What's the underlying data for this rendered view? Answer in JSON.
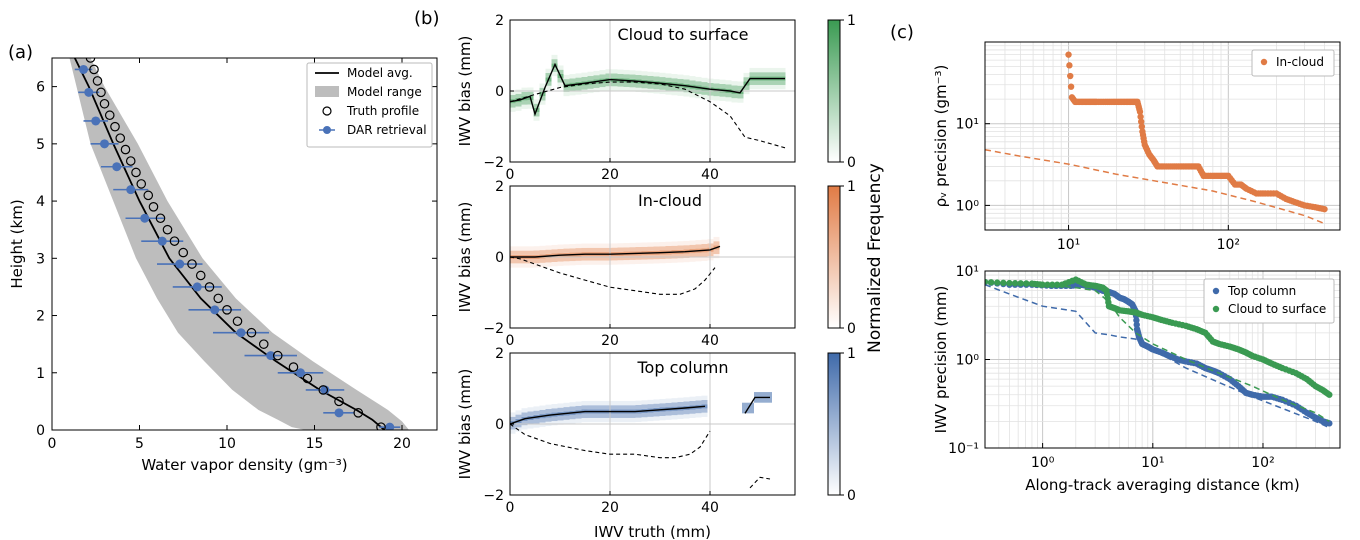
{
  "panel_labels": [
    "(a)",
    "(b)",
    "(c)"
  ],
  "colorbar_label": "Normalized Frequency",
  "colors": {
    "green": "#3a9a52",
    "orange": "#e07b45",
    "blue": "#3f6aaa",
    "model_range": "#bdbdbd",
    "retrieval": "#4a72b8"
  },
  "chart_data": [
    {
      "id": "a",
      "type": "line",
      "xlabel": "Water vapor density (gm⁻³)",
      "ylabel": "Height (km)",
      "xlim": [
        0,
        22
      ],
      "ylim": [
        0,
        6.5
      ],
      "xticks": [
        0,
        5,
        10,
        15,
        20
      ],
      "yticks": [
        0,
        1,
        2,
        3,
        4,
        5,
        6
      ],
      "legend": [
        "Model avg.",
        "Model range",
        "Truth profile",
        "DAR retrieval"
      ],
      "legend_position": "top-right",
      "model_avg": {
        "x": [
          1.3,
          2.1,
          3.5,
          5.0,
          6.7,
          8.5,
          10.5,
          12.8,
          15.3,
          17.4,
          18.3,
          19.0
        ],
        "y": [
          6.5,
          6.0,
          5.0,
          4.0,
          3.0,
          2.3,
          1.7,
          1.2,
          0.7,
          0.35,
          0.18,
          0.0
        ]
      },
      "range_min": {
        "x": [
          1.0,
          1.4,
          2.2,
          3.5,
          4.8,
          6.0,
          7.2,
          8.7,
          10.3,
          11.8,
          12.9,
          13.7,
          14.5
        ],
        "y": [
          6.5,
          6.0,
          5.0,
          4.0,
          3.0,
          2.3,
          1.7,
          1.2,
          0.7,
          0.35,
          0.18,
          0.05,
          0.0
        ]
      },
      "range_max": {
        "x": [
          2.2,
          3.0,
          4.9,
          6.6,
          8.6,
          10.5,
          12.6,
          14.9,
          17.4,
          19.2,
          20.0,
          20.4
        ],
        "y": [
          6.5,
          6.0,
          5.0,
          4.0,
          3.0,
          2.3,
          1.7,
          1.2,
          0.7,
          0.35,
          0.15,
          0.0
        ]
      },
      "truth_profile": {
        "x": [
          18.8,
          17.5,
          16.4,
          15.5,
          14.6,
          13.8,
          12.9,
          12.1,
          11.4,
          10.6,
          10.0,
          9.5,
          9.0,
          8.5,
          8.0,
          7.5,
          7.0,
          6.6,
          6.2,
          5.8,
          5.5,
          5.1,
          4.8,
          4.5,
          4.2,
          3.9,
          3.6,
          3.3,
          3.0,
          2.8,
          2.6,
          2.4,
          2.2,
          2.0,
          1.8,
          1.6
        ],
        "y": [
          0.05,
          0.3,
          0.5,
          0.7,
          0.9,
          1.1,
          1.3,
          1.5,
          1.7,
          1.9,
          2.1,
          2.3,
          2.5,
          2.7,
          2.9,
          3.1,
          3.3,
          3.5,
          3.7,
          3.9,
          4.1,
          4.3,
          4.5,
          4.7,
          4.9,
          5.1,
          5.3,
          5.5,
          5.7,
          5.9,
          6.1,
          6.3,
          6.5,
          6.7,
          6.9,
          7.1
        ]
      },
      "retrieval": {
        "x": [
          19.3,
          16.4,
          15.6,
          14.2,
          12.5,
          10.8,
          9.3,
          8.3,
          7.3,
          6.3,
          5.3,
          4.5,
          3.7,
          3.0,
          2.5,
          2.1,
          1.8
        ],
        "y": [
          0.05,
          0.3,
          0.7,
          1.0,
          1.3,
          1.7,
          2.1,
          2.5,
          2.9,
          3.3,
          3.7,
          4.2,
          4.6,
          5.0,
          5.4,
          5.9,
          6.3
        ],
        "xerr": [
          0.6,
          0.9,
          1.1,
          1.3,
          1.5,
          1.6,
          1.5,
          1.4,
          1.3,
          1.2,
          1.1,
          1.0,
          0.9,
          0.8,
          0.7,
          0.6,
          0.5
        ]
      }
    },
    {
      "id": "b",
      "type": "heatmap",
      "subplots": [
        {
          "title": "Cloud to surface",
          "ylabel": "IWV bias (mm)",
          "cmap": "green",
          "xlim": [
            0,
            57
          ],
          "ylim": [
            -2,
            2
          ],
          "xticks": [
            0,
            20,
            40
          ],
          "yticks": [
            -2,
            0,
            2
          ],
          "cbar_ticks": [
            0,
            1
          ],
          "mean": {
            "x": [
              0,
              2,
              4,
              5,
              7,
              9,
              11,
              15,
              20,
              25,
              30,
              35,
              40,
              44,
              46,
              48,
              50,
              55
            ],
            "y": [
              -0.3,
              -0.25,
              -0.15,
              -0.65,
              0.1,
              0.75,
              0.15,
              0.22,
              0.32,
              0.28,
              0.22,
              0.15,
              0.05,
              0.0,
              -0.05,
              0.35,
              0.35,
              0.35
            ]
          },
          "truth": {
            "x": [
              0,
              5,
              10,
              15,
              20,
              25,
              30,
              35,
              40,
              44,
              47,
              50,
              55
            ],
            "y": [
              -0.3,
              -0.1,
              0.1,
              0.2,
              0.25,
              0.25,
              0.2,
              0.05,
              -0.3,
              -0.7,
              -1.3,
              -1.4,
              -1.6
            ]
          }
        },
        {
          "title": "In-cloud",
          "ylabel": "IWV bias (mm)",
          "cmap": "orange",
          "xlim": [
            0,
            57
          ],
          "ylim": [
            -2,
            2
          ],
          "xticks": [
            0,
            20,
            40
          ],
          "yticks": [
            -2,
            0,
            2
          ],
          "cbar_ticks": [
            0,
            1
          ],
          "mean": {
            "x": [
              0,
              5,
              10,
              15,
              20,
              25,
              30,
              35,
              40,
              42
            ],
            "y": [
              0.0,
              0.0,
              0.05,
              0.08,
              0.08,
              0.1,
              0.12,
              0.15,
              0.2,
              0.3
            ]
          },
          "truth": {
            "x": [
              0,
              2,
              5,
              10,
              15,
              20,
              25,
              30,
              34,
              37,
              39,
              41
            ],
            "y": [
              0.0,
              -0.05,
              -0.2,
              -0.45,
              -0.65,
              -0.85,
              -0.95,
              -1.05,
              -1.05,
              -0.9,
              -0.65,
              -0.3
            ]
          }
        },
        {
          "title": "Top column",
          "ylabel": "IWV bias (mm)",
          "cmap": "blue",
          "xlim": [
            0,
            57
          ],
          "ylim": [
            -2,
            2
          ],
          "xticks": [
            0,
            20,
            40
          ],
          "yticks": [
            -2,
            0,
            2
          ],
          "xlabel": "IWV truth (mm)",
          "cbar_ticks": [
            0,
            1
          ],
          "mean": {
            "x": [
              0,
              3,
              8,
              15,
              20,
              25,
              30,
              35,
              39
            ],
            "y": [
              0.0,
              0.15,
              0.25,
              0.35,
              0.35,
              0.35,
              0.4,
              0.45,
              0.5
            ]
          },
          "mean_right": {
            "x": [
              47,
              49,
              52
            ],
            "y": [
              0.3,
              0.75,
              0.75
            ]
          },
          "truth": {
            "x": [
              0,
              3,
              8,
              15,
              20,
              25,
              30,
              33,
              36,
              38,
              40
            ],
            "y": [
              0.0,
              -0.3,
              -0.55,
              -0.75,
              -0.85,
              -0.85,
              -0.95,
              -0.95,
              -0.85,
              -0.65,
              -0.2
            ]
          },
          "truth_right": {
            "x": [
              48,
              50,
              52
            ],
            "y": [
              -1.8,
              -1.5,
              -1.55
            ]
          }
        }
      ]
    },
    {
      "id": "c",
      "type": "scatter",
      "subplots": [
        {
          "ylabel": "ρᵥ precision (gm⁻³)",
          "xscale": "log",
          "yscale": "log",
          "xlim": [
            3,
            500
          ],
          "ylim": [
            0.5,
            100
          ],
          "xticks": [
            10,
            100
          ],
          "xtick_labels": [
            "10¹",
            "10²"
          ],
          "yticks": [
            1,
            10
          ],
          "ytick_labels": [
            "10⁰",
            "10¹"
          ],
          "legend": [
            "In-cloud"
          ],
          "legend_position": "top-right",
          "series": [
            {
              "name": "In-cloud",
              "color": "orange",
              "x": [
                10,
                10.5,
                11,
                12,
                13,
                14,
                15,
                17,
                19,
                21,
                23,
                25,
                27,
                28,
                29,
                30,
                32,
                34,
                36,
                40,
                45,
                50,
                55,
                60,
                65,
                70,
                80,
                90,
                100,
                110,
                120,
                130,
                150,
                170,
                200,
                230,
                260,
                300,
                350,
                400
              ],
              "y": [
                70,
                21,
                18.5,
                18.5,
                18.5,
                18.5,
                18.5,
                18.5,
                18.5,
                18.5,
                18.5,
                18.5,
                18.5,
                14,
                8,
                5.5,
                4.2,
                3.6,
                3.0,
                3.0,
                3.0,
                3.0,
                3.0,
                3.0,
                3.0,
                2.3,
                2.3,
                2.3,
                2.3,
                1.8,
                1.8,
                1.6,
                1.4,
                1.4,
                1.4,
                1.2,
                1.1,
                1.0,
                0.95,
                0.9
              ]
            },
            {
              "name": "",
              "style": "dashed",
              "color": "orange",
              "x": [
                3,
                5,
                10,
                20,
                40,
                80,
                150,
                300,
                400
              ],
              "y": [
                4.8,
                4.0,
                3.2,
                2.4,
                1.9,
                1.5,
                1.1,
                0.75,
                0.6
              ]
            }
          ]
        },
        {
          "ylabel": "IWV precision (mm)",
          "xlabel": "Along-track averaging distance (km)",
          "xscale": "log",
          "yscale": "log",
          "xlim": [
            0.3,
            500
          ],
          "ylim": [
            0.1,
            10
          ],
          "xticks": [
            1,
            10,
            100
          ],
          "xtick_labels": [
            "10⁰",
            "10¹",
            "10²"
          ],
          "yticks": [
            0.1,
            1,
            10
          ],
          "ytick_labels": [
            "10⁻¹",
            "10⁰",
            "10¹"
          ],
          "legend": [
            "Top column",
            "Cloud to surface"
          ],
          "legend_position": "top-right",
          "series": [
            {
              "name": "Top column",
              "color": "blue",
              "x": [
                0.3,
                0.5,
                0.8,
                1.2,
                1.8,
                2.2,
                2.6,
                3.0,
                3.5,
                4,
                4.5,
                5,
                5.5,
                6,
                6.5,
                7,
                7.2,
                7.5,
                8,
                9,
                10,
                12,
                14,
                17,
                20,
                25,
                30,
                35,
                40,
                50,
                60,
                70,
                80,
                100,
                120,
                150,
                200,
                250,
                300,
                350,
                400
              ],
              "y": [
                7.5,
                7.0,
                7.0,
                6.8,
                6.8,
                7.0,
                6.8,
                6.5,
                6.0,
                5.8,
                5.5,
                5.0,
                4.8,
                4.5,
                4.2,
                3.5,
                2.2,
                1.8,
                1.5,
                1.4,
                1.3,
                1.2,
                1.1,
                1.0,
                0.95,
                0.9,
                0.8,
                0.75,
                0.7,
                0.6,
                0.5,
                0.42,
                0.4,
                0.38,
                0.38,
                0.35,
                0.3,
                0.25,
                0.22,
                0.2,
                0.19
              ]
            },
            {
              "name": "Cloud to surface",
              "color": "green",
              "x": [
                0.3,
                0.5,
                0.8,
                1.0,
                1.5,
                2.0,
                2.5,
                3.0,
                3.5,
                3.8,
                4,
                4.5,
                5,
                6,
                7,
                8,
                10,
                12,
                15,
                20,
                25,
                30,
                35,
                40,
                50,
                60,
                70,
                80,
                100,
                120,
                150,
                200,
                250,
                300,
                350,
                400
              ],
              "y": [
                7.5,
                7.3,
                7.2,
                7.0,
                7.0,
                8.0,
                7.0,
                6.8,
                6.5,
                6.0,
                4.0,
                3.8,
                3.6,
                3.5,
                3.4,
                3.2,
                3.0,
                2.8,
                2.6,
                2.4,
                2.2,
                2.0,
                1.6,
                1.5,
                1.4,
                1.3,
                1.2,
                1.1,
                1.0,
                0.9,
                0.8,
                0.7,
                0.6,
                0.5,
                0.45,
                0.4
              ]
            },
            {
              "name": "",
              "style": "dashed",
              "color": "blue",
              "x": [
                0.3,
                0.5,
                1,
                2,
                3,
                4,
                5,
                7,
                10,
                20,
                40,
                80,
                150,
                300,
                400
              ],
              "y": [
                7.0,
                5.5,
                4.0,
                3.5,
                2.0,
                1.9,
                1.8,
                1.7,
                1.3,
                0.8,
                0.55,
                0.38,
                0.28,
                0.2,
                0.17
              ]
            },
            {
              "name": "",
              "style": "dashed",
              "color": "green",
              "x": [
                0.3,
                0.5,
                1,
                2,
                3,
                4,
                5,
                7,
                10,
                20,
                40,
                80,
                150,
                300,
                400
              ],
              "y": [
                7.5,
                7.3,
                7.0,
                6.5,
                6.0,
                4.5,
                3.0,
                2.0,
                1.5,
                1.0,
                0.7,
                0.5,
                0.35,
                0.25,
                0.2
              ]
            }
          ]
        }
      ]
    }
  ]
}
